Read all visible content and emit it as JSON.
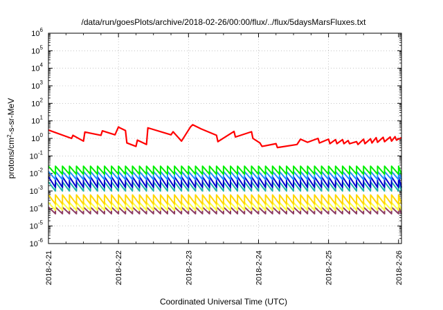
{
  "chart_data": {
    "type": "line",
    "title": "/data/run/goesPlots/archive/2018-02-26/00:00/flux/../flux/5daysMarsFluxes.txt",
    "xlabel": "Coordinated Universal Time (UTC)",
    "ylabel_prefix": "protons/cm",
    "ylabel_sup": "2",
    "ylabel_suffix": "-s-sr-MeV",
    "yscale": "log",
    "ylim": [
      1e-06,
      1000000.0
    ],
    "y_ticks": [
      {
        "base": "10",
        "exp": "-6"
      },
      {
        "base": "10",
        "exp": "-5"
      },
      {
        "base": "10",
        "exp": "-4"
      },
      {
        "base": "10",
        "exp": "-3"
      },
      {
        "base": "10",
        "exp": "-2"
      },
      {
        "base": "10",
        "exp": "-1"
      },
      {
        "base": "10",
        "exp": "0"
      },
      {
        "base": "10",
        "exp": "1"
      },
      {
        "base": "10",
        "exp": "2"
      },
      {
        "base": "10",
        "exp": "3"
      },
      {
        "base": "10",
        "exp": "4"
      },
      {
        "base": "10",
        "exp": "5"
      },
      {
        "base": "10",
        "exp": "6"
      }
    ],
    "x_ticks": [
      "2018-2-21",
      "2018-2-22",
      "2018-2-23",
      "2018-2-24",
      "2018-2-25",
      "2018-2-26"
    ],
    "x_start_date": "2018-02-21T00:00:00Z",
    "x_end_date": "2018-02-26T01:00:00Z",
    "grid": true,
    "series": [
      {
        "color": "#ff0000",
        "x_days": [
          0.0,
          0.33,
          0.35,
          0.5,
          0.52,
          0.75,
          0.77,
          0.95,
          1.0,
          1.02,
          1.1,
          1.12,
          1.25,
          1.27,
          1.4,
          1.42,
          1.75,
          1.78,
          1.9,
          2.03,
          2.06,
          2.15,
          2.18,
          2.4,
          2.42,
          2.65,
          2.67,
          2.9,
          2.92,
          3.02,
          3.05,
          3.25,
          3.27,
          3.55,
          3.6,
          3.7,
          3.85,
          3.87,
          4.0,
          4.02,
          4.1,
          4.12,
          4.2,
          4.22,
          4.28,
          4.3,
          4.4,
          4.42,
          4.5,
          4.52,
          4.6,
          4.62,
          4.68,
          4.7,
          4.78,
          4.8,
          4.88,
          4.9,
          4.95,
          4.97,
          5.04
        ],
        "y": [
          3.0,
          1.0,
          1.5,
          0.7,
          2.3,
          1.5,
          2.7,
          1.6,
          4.5,
          4.0,
          2.8,
          0.55,
          0.35,
          0.8,
          0.45,
          4.0,
          1.6,
          2.4,
          0.7,
          4.6,
          6.0,
          4.0,
          3.5,
          1.5,
          0.65,
          2.5,
          1.2,
          2.4,
          1.0,
          0.55,
          0.35,
          0.5,
          0.3,
          0.45,
          0.9,
          0.6,
          1.0,
          0.55,
          0.9,
          0.5,
          0.85,
          0.5,
          0.85,
          0.5,
          0.75,
          0.5,
          0.65,
          0.45,
          0.9,
          0.5,
          0.95,
          0.55,
          1.1,
          0.6,
          1.15,
          0.65,
          1.2,
          0.7,
          1.25,
          0.8,
          1.1
        ]
      }
    ],
    "bands": [
      {
        "color": "#00ee00",
        "high": 0.026,
        "low": 0.009,
        "period_days": 0.1
      },
      {
        "color": "#1e90ff",
        "high": 0.013,
        "low": 0.0045,
        "period_days": 0.1
      },
      {
        "color": "#0000cd",
        "high": 0.0065,
        "low": 0.0016,
        "period_days": 0.1
      },
      {
        "color": "#20b2aa",
        "high": 0.0033,
        "low": 0.001,
        "period_days": 0.1
      },
      {
        "color": "#ffd700",
        "high": 0.0006,
        "low": 0.00018,
        "period_days": 0.1
      },
      {
        "color": "#ffff40",
        "high": 0.00022,
        "low": 8e-05,
        "period_days": 0.1
      },
      {
        "color": "#8b3a62",
        "high": 0.00012,
        "low": 5e-05,
        "period_days": 0.1
      }
    ]
  }
}
